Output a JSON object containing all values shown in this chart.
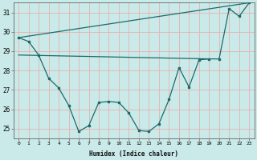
{
  "xlabel": "Humidex (Indice chaleur)",
  "ylabel": "",
  "bg_color": "#c9eae8",
  "line_color": "#1a6b6b",
  "grid_color": "#e8b0b0",
  "xlim": [
    -0.5,
    23.5
  ],
  "ylim": [
    24.5,
    31.5
  ],
  "yticks": [
    25,
    26,
    27,
    28,
    29,
    30,
    31
  ],
  "xticks": [
    0,
    1,
    2,
    3,
    4,
    5,
    6,
    7,
    8,
    9,
    10,
    11,
    12,
    13,
    14,
    15,
    16,
    17,
    18,
    19,
    20,
    21,
    22,
    23
  ],
  "line1_x": [
    0,
    1,
    2,
    3,
    4,
    5,
    6,
    7,
    8,
    9,
    10,
    11,
    12,
    13,
    14,
    15,
    16,
    17,
    18,
    19,
    20,
    21,
    22,
    23
  ],
  "line1_y": [
    29.7,
    29.5,
    28.8,
    27.6,
    27.1,
    26.2,
    24.85,
    25.15,
    26.35,
    26.4,
    26.35,
    25.8,
    24.9,
    24.85,
    25.25,
    26.5,
    28.15,
    27.15,
    28.55,
    28.6,
    28.6,
    31.2,
    30.8,
    31.5
  ],
  "line2_x": [
    0,
    23
  ],
  "line2_y": [
    29.7,
    31.5
  ],
  "line3_x": [
    0,
    19
  ],
  "line3_y": [
    28.8,
    28.6
  ]
}
